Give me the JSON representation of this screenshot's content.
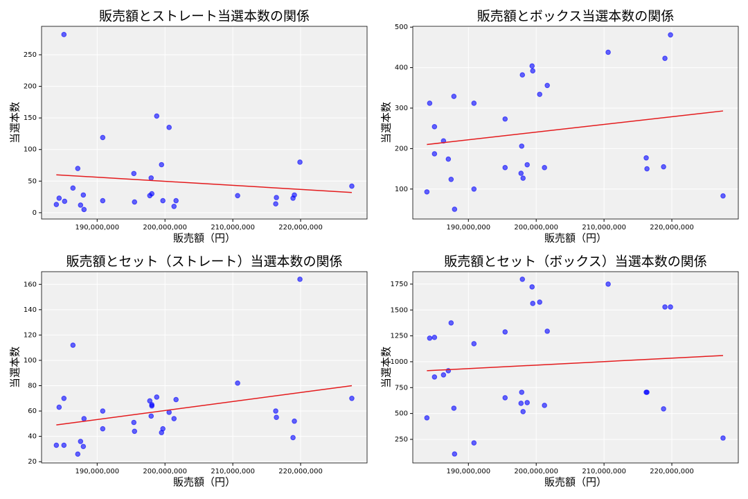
{
  "chart_data": [
    {
      "type": "scatter",
      "title": "販売額とストレート当選本数の関係",
      "xlabel": "販売額（円）",
      "ylabel": "当選本数",
      "color": "#0000ff",
      "grid": true,
      "xlim": [
        181800000,
        229800000
      ],
      "ylim": [
        -10,
        295
      ],
      "xticks": [
        {
          "value": 190000000,
          "label": "190,000,000"
        },
        {
          "value": 200000000,
          "label": "200,000,000"
        },
        {
          "value": 210000000,
          "label": "210,000,000"
        },
        {
          "value": 220000000,
          "label": "220,000,000"
        }
      ],
      "yticks": [
        0,
        50,
        100,
        150,
        200,
        250
      ],
      "x": [
        183980000,
        184390000,
        185100000,
        185200000,
        186430000,
        187140000,
        187550000,
        187960000,
        188060000,
        190820000,
        190820000,
        195410000,
        195510000,
        197760000,
        197960000,
        198060000,
        198780000,
        199490000,
        199690000,
        200610000,
        201330000,
        201630000,
        210710000,
        216330000,
        216430000,
        218880000,
        219080000,
        219900000,
        227550000
      ],
      "values": [
        13,
        23,
        282,
        18,
        39,
        70,
        12,
        28,
        5,
        119,
        19,
        62,
        17,
        27,
        55,
        30,
        153,
        76,
        19,
        135,
        10,
        19,
        27,
        14,
        24,
        23,
        28,
        80,
        42
      ],
      "trend": {
        "color": "#e41a1c",
        "x": [
          183980000,
          227550000
        ],
        "values": [
          60,
          32
        ]
      }
    },
    {
      "type": "scatter",
      "title": "販売額とボックス当選本数の関係",
      "xlabel": "販売額（円）",
      "ylabel": "当選本数",
      "color": "#0000ff",
      "grid": true,
      "xlim": [
        181800000,
        229800000
      ],
      "ylim": [
        26,
        502
      ],
      "xticks": [
        {
          "value": 190000000,
          "label": "190,000,000"
        },
        {
          "value": 200000000,
          "label": "200,000,000"
        },
        {
          "value": 210000000,
          "label": "210,000,000"
        },
        {
          "value": 220000000,
          "label": "220,000,000"
        }
      ],
      "yticks": [
        100,
        200,
        300,
        400,
        500
      ],
      "x": [
        183880000,
        184290000,
        185000000,
        185000000,
        186330000,
        187040000,
        187450000,
        187860000,
        187960000,
        190820000,
        190820000,
        195410000,
        195410000,
        197960000,
        197860000,
        197760000,
        198060000,
        198670000,
        199390000,
        199490000,
        200510000,
        201220000,
        201630000,
        210610000,
        216220000,
        216330000,
        218980000,
        218780000,
        219800000,
        227550000
      ],
      "values": [
        93,
        312,
        254,
        187,
        219,
        174,
        124,
        329,
        50,
        100,
        312,
        273,
        153,
        382,
        206,
        139,
        127,
        160,
        404,
        392,
        334,
        153,
        356,
        438,
        177,
        150,
        423,
        155,
        481,
        83
      ],
      "trend": {
        "color": "#e41a1c",
        "x": [
          183880000,
          227550000
        ],
        "values": [
          210,
          293
        ]
      }
    },
    {
      "type": "scatter",
      "title": "販売額とセット（ストレート）当選本数の関係",
      "xlabel": "販売額（円）",
      "ylabel": "当選本数",
      "color": "#0000ff",
      "grid": true,
      "xlim": [
        181800000,
        229800000
      ],
      "ylim": [
        19,
        170
      ],
      "xticks": [
        {
          "value": 190000000,
          "label": "190,000,000"
        },
        {
          "value": 200000000,
          "label": "200,000,000"
        },
        {
          "value": 210000000,
          "label": "210,000,000"
        },
        {
          "value": 220000000,
          "label": "220,000,000"
        }
      ],
      "yticks": [
        20,
        40,
        60,
        80,
        100,
        120,
        140,
        160
      ],
      "x": [
        183980000,
        184390000,
        185100000,
        185100000,
        186430000,
        187140000,
        187550000,
        187960000,
        188060000,
        190820000,
        190820000,
        195410000,
        195510000,
        197760000,
        197960000,
        198060000,
        198060000,
        198780000,
        199490000,
        199690000,
        200610000,
        201330000,
        201630000,
        210710000,
        216330000,
        216430000,
        218880000,
        219080000,
        219900000,
        227550000
      ],
      "values": [
        33,
        63,
        70,
        33,
        112,
        26,
        36,
        32,
        54,
        60,
        46,
        51,
        44,
        68,
        56,
        65,
        64,
        71,
        43,
        46,
        59,
        54,
        69,
        82,
        60,
        55,
        39,
        52,
        164,
        70
      ],
      "trend": {
        "color": "#e41a1c",
        "x": [
          183980000,
          227550000
        ],
        "values": [
          49,
          80
        ]
      }
    },
    {
      "type": "scatter",
      "title": "販売額とセット（ボックス）当選本数の関係",
      "xlabel": "販売額（円）",
      "ylabel": "当選本数",
      "color": "#0000ff",
      "grid": true,
      "xlim": [
        181800000,
        229800000
      ],
      "ylim": [
        22,
        1870
      ],
      "xticks": [
        {
          "value": 190000000,
          "label": "190,000,000"
        },
        {
          "value": 200000000,
          "label": "200,000,000"
        },
        {
          "value": 210000000,
          "label": "210,000,000"
        },
        {
          "value": 220000000,
          "label": "220,000,000"
        }
      ],
      "yticks": [
        250,
        500,
        750,
        1000,
        1250,
        1500,
        1750
      ],
      "x": [
        183880000,
        184290000,
        185000000,
        185000000,
        186330000,
        187040000,
        187450000,
        187860000,
        187960000,
        190820000,
        190820000,
        195410000,
        195410000,
        197960000,
        197860000,
        197760000,
        198060000,
        198670000,
        199390000,
        199490000,
        200510000,
        201220000,
        201630000,
        210610000,
        216220000,
        216330000,
        218980000,
        218780000,
        219800000,
        227550000
      ],
      "values": [
        458,
        1228,
        1235,
        853,
        873,
        913,
        1375,
        551,
        109,
        1174,
        216,
        1288,
        652,
        1797,
        705,
        598,
        518,
        605,
        1723,
        1563,
        1576,
        578,
        1295,
        1750,
        705,
        705,
        1529,
        545,
        1529,
        263
      ],
      "trend": {
        "color": "#e41a1c",
        "x": [
          183880000,
          227550000
        ],
        "values": [
          913,
          1060
        ]
      }
    }
  ]
}
